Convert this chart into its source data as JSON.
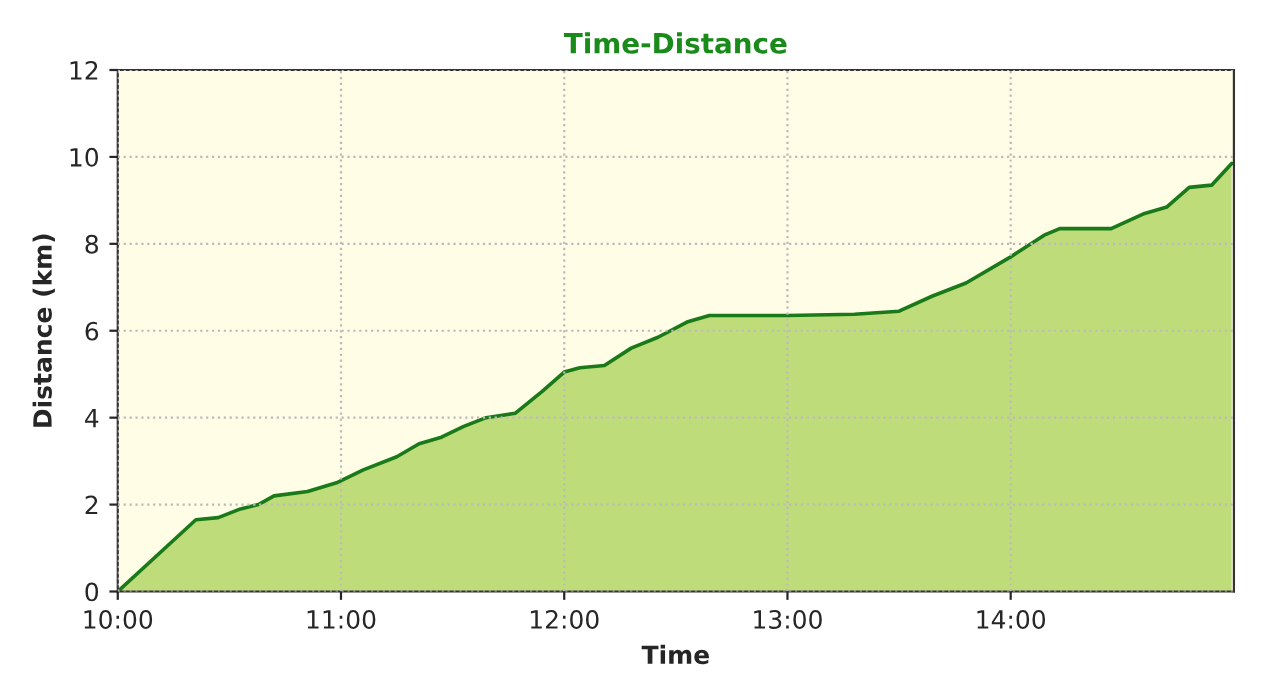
{
  "chart_data": {
    "type": "area",
    "title": "Time-Distance",
    "xlabel": "Time",
    "ylabel": "Distance (km)",
    "xlim": [
      10,
      15
    ],
    "xticks": [
      {
        "value": 10,
        "label": "10:00"
      },
      {
        "value": 11,
        "label": "11:00"
      },
      {
        "value": 12,
        "label": "12:00"
      },
      {
        "value": 13,
        "label": "13:00"
      },
      {
        "value": 14,
        "label": "14:00"
      }
    ],
    "ylim": [
      0,
      12
    ],
    "yticks": [
      0,
      2,
      4,
      6,
      8,
      10,
      12
    ],
    "grid": true,
    "legend": false,
    "series": [
      {
        "color": "#1a7a1a",
        "x": [
          10.0,
          10.35,
          10.45,
          10.55,
          10.63,
          10.7,
          10.85,
          10.98,
          11.1,
          11.25,
          11.35,
          11.45,
          11.55,
          11.65,
          11.78,
          11.9,
          12.0,
          12.07,
          12.18,
          12.3,
          12.42,
          12.55,
          12.65,
          13.0,
          13.3,
          13.5,
          13.65,
          13.8,
          14.0,
          14.15,
          14.22,
          14.45,
          14.6,
          14.7,
          14.8,
          14.9,
          14.99
        ],
        "values": [
          0,
          1.65,
          1.7,
          1.9,
          2.0,
          2.2,
          2.3,
          2.5,
          2.8,
          3.1,
          3.4,
          3.55,
          3.8,
          4.0,
          4.1,
          4.6,
          5.05,
          5.15,
          5.2,
          5.6,
          5.85,
          6.2,
          6.35,
          6.35,
          6.38,
          6.45,
          6.8,
          7.1,
          7.7,
          8.2,
          8.35,
          8.35,
          8.7,
          8.85,
          9.3,
          9.35,
          9.85
        ]
      }
    ]
  }
}
